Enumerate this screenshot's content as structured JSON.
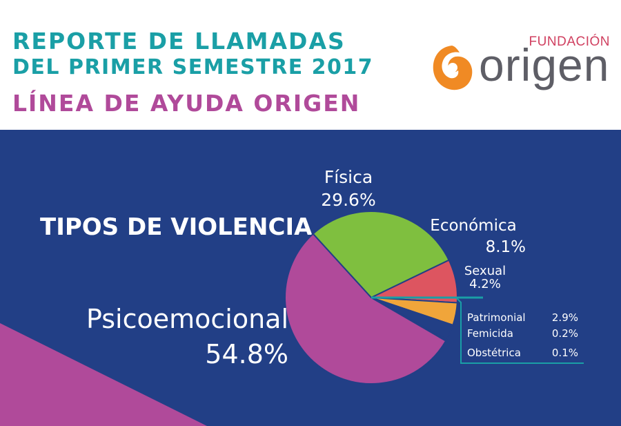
{
  "header": {
    "title_line1": "REPORTE DE LLAMADAS",
    "title_line2": "DEL PRIMER SEMESTRE 2017",
    "subtitle": "LÍNEA DE AYUDA ORIGEN"
  },
  "logo": {
    "top_text": "FUNDACIÓN",
    "main_text": "origen"
  },
  "colors": {
    "teal": "#1a9fa6",
    "magenta": "#b04a9a",
    "panel_blue": "#223f86",
    "logo_orange": "#f08a24"
  },
  "chart_data": {
    "type": "pie",
    "title": "TIPOS DE VIOLENCIA",
    "slices": [
      {
        "name": "Física",
        "value": 29.6,
        "label": "29.6%",
        "color": "#7fbf3f"
      },
      {
        "name": "Económica",
        "value": 8.1,
        "label": "8.1%",
        "color": "#dd5560"
      },
      {
        "name": "Sexual",
        "value": 4.2,
        "label": "4.2%",
        "color": "#f0a53a"
      },
      {
        "name": "Patrimonial",
        "value": 2.9,
        "label": "2.9%",
        "color": "#223f86"
      },
      {
        "name": "Femicida",
        "value": 0.2,
        "label": "0.2%",
        "color": "#223f86"
      },
      {
        "name": "Obstétrica",
        "value": 0.1,
        "label": "0.1%",
        "color": "#223f86"
      },
      {
        "name": "Psicoemocional",
        "value": 54.8,
        "label": "54.8%",
        "color": "#b04a9a"
      }
    ],
    "callout": [
      {
        "name": "Patrimonial",
        "label": "2.9%"
      },
      {
        "name": "Femicida",
        "label": "0.2%"
      },
      {
        "name": "Obstétrica",
        "label": "0.1%"
      }
    ]
  }
}
